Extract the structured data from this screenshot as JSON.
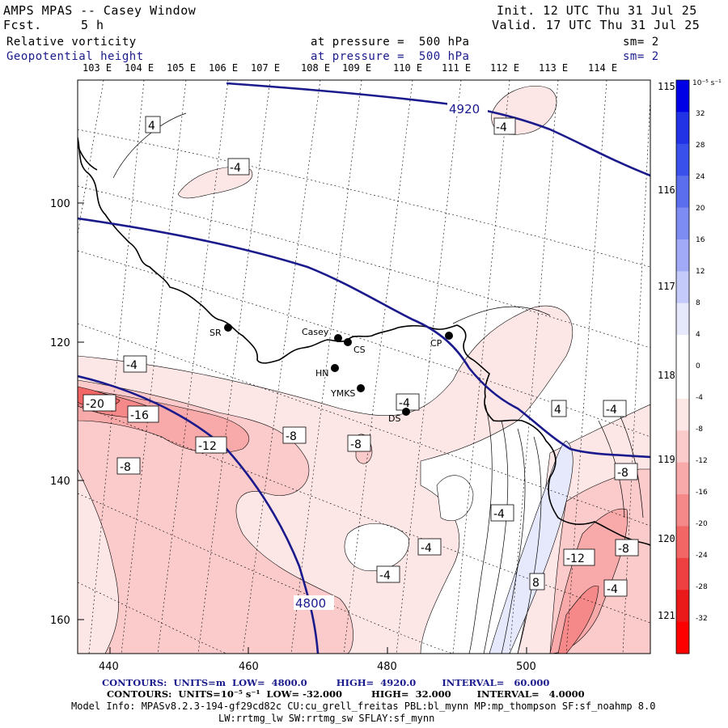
{
  "header": {
    "title": "AMPS MPAS -- Casey Window",
    "fcst_label": "Fcst.",
    "fcst_value": "5 h",
    "init": "Init. 12 UTC Thu 31 Jul 25",
    "valid": "Valid. 17 UTC Thu 31 Jul 25",
    "field1": "Relative vorticity",
    "field1_level": "at pressure =  500 hPa",
    "field1_sm": "sm= 2",
    "field2": "Geopotential height",
    "field2_level": "at pressure =  500 hPa",
    "field2_sm": "sm= 2"
  },
  "top_longitudes": [
    "103 E",
    "104 E",
    "105 E",
    "106 E",
    "107 E",
    "108 E",
    "109 E",
    "110 E",
    "111 E",
    "112 E",
    "113 E",
    "114 E"
  ],
  "right_longitudes": [
    "115 E",
    "116 E",
    "117 E",
    "118 E",
    "119 E",
    "120 E",
    "121 E"
  ],
  "y_ticks": [
    "100",
    "120",
    "140",
    "160"
  ],
  "x_ticks": [
    "440",
    "460",
    "480",
    "500"
  ],
  "colorbar": {
    "unit": "10⁻⁵ s⁻¹",
    "levels": [
      "32",
      "28",
      "24",
      "20",
      "16",
      "12",
      "8",
      "4",
      "0",
      "-4",
      "-8",
      "-12",
      "-16",
      "-20",
      "-24",
      "-28",
      "-32"
    ],
    "colors": [
      "#0000e6",
      "#2233e6",
      "#3a50ea",
      "#5a6eee",
      "#7c8cf2",
      "#a0aaf6",
      "#c4caf9",
      "#e6e8fc",
      "#ffffff",
      "#ffffff",
      "#fde6e6",
      "#fbcaca",
      "#f8aaaa",
      "#f58888",
      "#f26666",
      "#ee4040",
      "#ea1a1a",
      "#ff0000"
    ]
  },
  "stations": [
    {
      "name": "SR"
    },
    {
      "name": "Casey"
    },
    {
      "name": "CS"
    },
    {
      "name": "HN"
    },
    {
      "name": "YMKS"
    },
    {
      "name": "DS"
    },
    {
      "name": "CP"
    }
  ],
  "contour_labels": {
    "height": [
      "4920",
      "4800"
    ],
    "vorticity": [
      "4",
      "-4",
      "-4",
      "-4",
      "-20",
      "-16",
      "-12",
      "-8",
      "-8",
      "-8",
      "-4",
      "-4",
      "4",
      "-4",
      "-8",
      "-4",
      "-4",
      "-12",
      "-8",
      "8",
      "-4"
    ]
  },
  "footer": {
    "line1": "CONTOURS:  UNITS=m  LOW=  4800.0         HIGH=  4920.0        INTERVAL=   60.000",
    "line2": "CONTOURS:  UNITS=10⁻⁵ s⁻¹  LOW= -32.000         HIGH=  32.000        INTERVAL=   4.0000",
    "line3": "Model Info: MPASv8.2.3-194-gf29cd82c CU:cu_grell_freitas PBL:bl_mynn MP:mp_thompson SF:sf_noahmp 8.0",
    "line4": "LW:rrtmg_lw SW:rrtmg_sw SFLAY:sf_mynn"
  }
}
